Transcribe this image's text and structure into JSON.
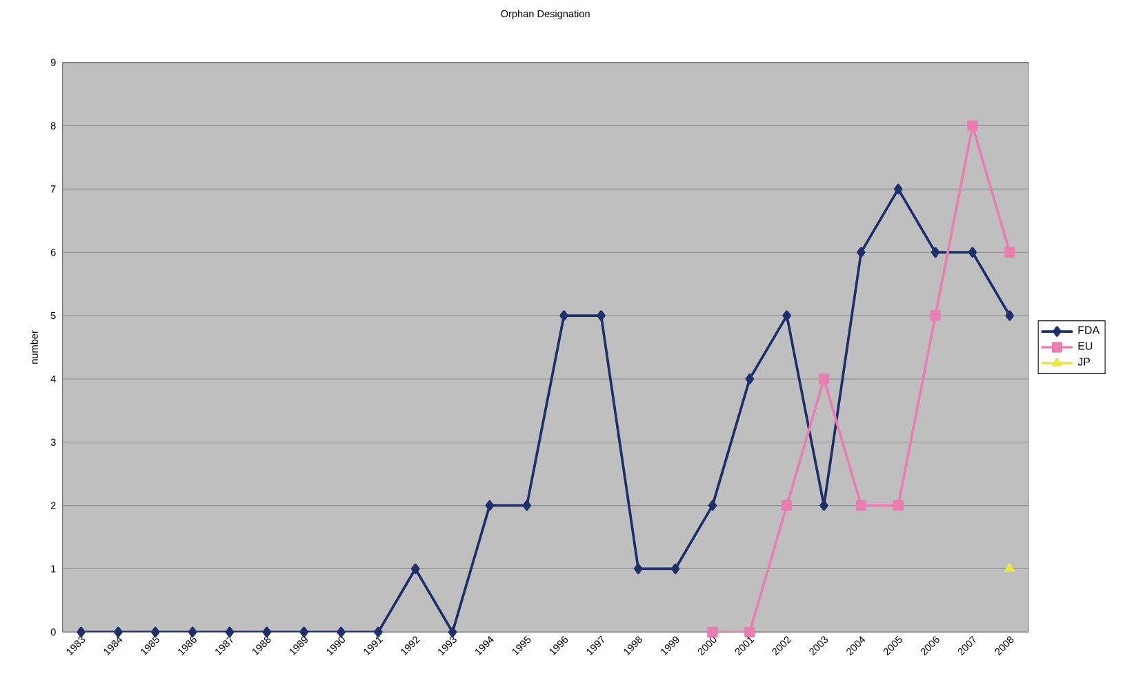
{
  "chart_data": {
    "type": "line",
    "title": "Orphan Designation",
    "ylabel": "number",
    "categories": [
      "1983",
      "1984",
      "1985",
      "1986",
      "1987",
      "1988",
      "1989",
      "1990",
      "1991",
      "1992",
      "1993",
      "1994",
      "1995",
      "1996",
      "1997",
      "1998",
      "1999",
      "2000",
      "2001",
      "2002",
      "2003",
      "2004",
      "2005",
      "2006",
      "2007",
      "2008"
    ],
    "series": [
      {
        "name": "FDA",
        "color": "#1f2f6b",
        "marker": "diamond",
        "values": [
          0,
          0,
          0,
          0,
          0,
          0,
          0,
          0,
          0,
          1,
          0,
          2,
          2,
          5,
          5,
          1,
          1,
          2,
          4,
          5,
          2,
          6,
          7,
          6,
          6,
          5
        ]
      },
      {
        "name": "EU",
        "color": "#e87fb0",
        "marker": "square",
        "values": [
          null,
          null,
          null,
          null,
          null,
          null,
          null,
          null,
          null,
          null,
          null,
          null,
          null,
          null,
          null,
          null,
          null,
          0,
          0,
          2,
          4,
          2,
          2,
          5,
          8,
          6
        ]
      },
      {
        "name": "JP",
        "color": "#e8e84a",
        "marker": "triangle",
        "values": [
          null,
          null,
          null,
          null,
          null,
          null,
          null,
          null,
          null,
          null,
          null,
          null,
          null,
          null,
          null,
          null,
          null,
          null,
          null,
          null,
          null,
          null,
          null,
          null,
          null,
          1
        ]
      }
    ],
    "ylim": [
      0,
      9
    ],
    "yticks": [
      0,
      1,
      2,
      3,
      4,
      5,
      6,
      7,
      8,
      9
    ],
    "grid": "y",
    "legend": "right",
    "line_style": "solid"
  }
}
